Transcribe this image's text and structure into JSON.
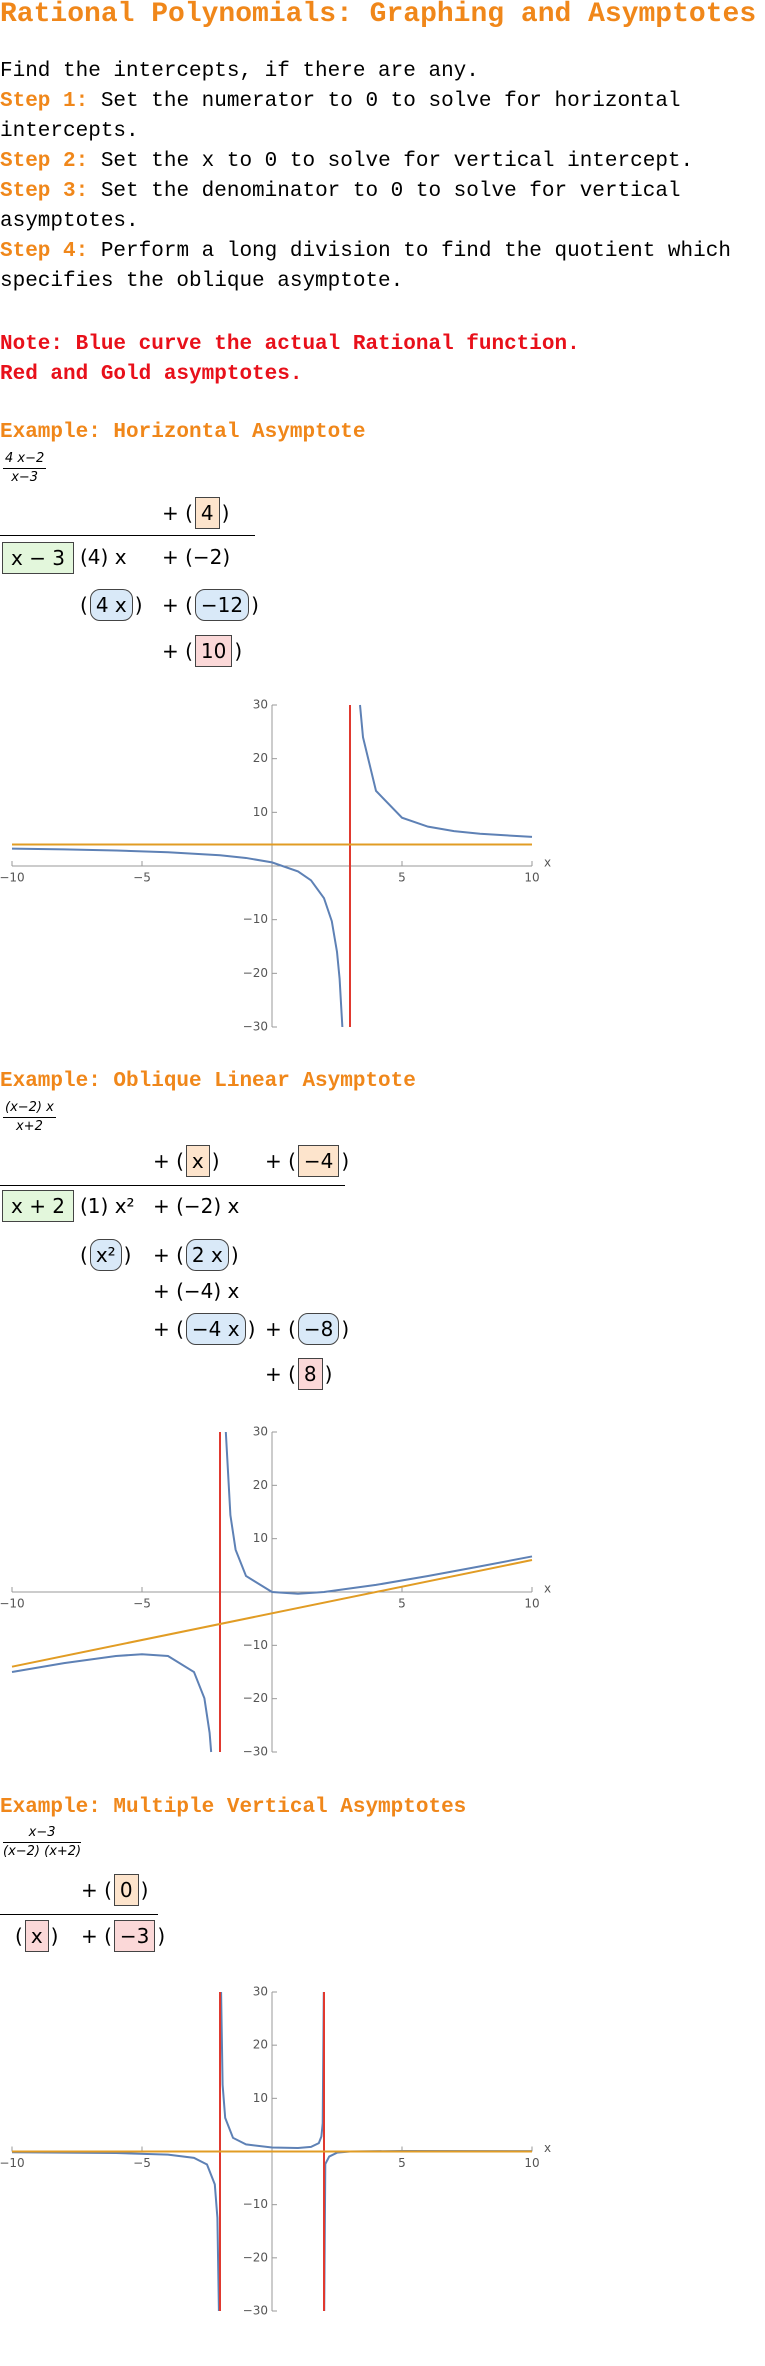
{
  "title": "Rational Polynomials: Graphing and Asymptotes",
  "intro": "Find the intercepts, if there are any.",
  "steps": [
    {
      "label": "Step 1:",
      "text": "Set the numerator to 0 to solve for horizontal intercepts."
    },
    {
      "label": "Step 2:",
      "text": "Set the x to 0 to solve for vertical intercept."
    },
    {
      "label": "Step 3:",
      "text": "Set the denominator to 0 to solve for vertical asymptotes."
    },
    {
      "label": "Step 4:",
      "text": "Perform a long division to find the quotient which specifies the oblique asymptote."
    }
  ],
  "notes": [
    "Note: Blue curve the actual Rational function.",
    "Red and Gold asymptotes."
  ],
  "examples": [
    {
      "heading": "Example: Horizontal Asymptote",
      "numerator": "4 x−2",
      "denominator": "x−3",
      "division": [
        {
          "pre": "+ (",
          "box": "4",
          "post": ")",
          "kind": "quotient"
        },
        {
          "box": "x − 3",
          "kind": "divisor"
        },
        {
          "pre": "(4) x"
        },
        {
          "pre": "+ (−2)"
        },
        {
          "pre": "(",
          "box": "4 x",
          "post": ")",
          "kind": "product"
        },
        {
          "pre": "+ (",
          "box": "−12",
          "post": ")",
          "kind": "product"
        },
        {
          "pre": "+ (",
          "box": "10",
          "post": ")",
          "kind": "remainder"
        }
      ]
    },
    {
      "heading": "Example: Oblique Linear Asymptote",
      "numerator": "(x−2) x",
      "denominator": "x+2",
      "division": [
        {
          "pre": "+ (",
          "box": "x",
          "post": ")",
          "kind": "quotient"
        },
        {
          "pre": "+ (",
          "box": "−4",
          "post": ")",
          "kind": "quotient"
        },
        {
          "box": "x + 2",
          "kind": "divisor"
        },
        {
          "pre": "(1) x²"
        },
        {
          "pre": "+ (−2) x"
        },
        {
          "pre": "(",
          "box": "x²",
          "post": ")",
          "kind": "product"
        },
        {
          "pre": "+ (",
          "box": "2 x",
          "post": ")",
          "kind": "product"
        },
        {
          "pre": "+ (−4) x"
        },
        {
          "pre": "+ (",
          "box": "−4 x",
          "post": ")",
          "kind": "product"
        },
        {
          "pre": "+ (",
          "box": "−8",
          "post": ")",
          "kind": "product"
        },
        {
          "pre": "+ (",
          "box": "8",
          "post": ")",
          "kind": "remainder"
        }
      ]
    },
    {
      "heading": "Example: Multiple Vertical Asymptotes",
      "numerator": "x−3",
      "denominator": "(x−2) (x+2)",
      "division": [
        {
          "pre": "+ (",
          "box": "0",
          "post": ")",
          "kind": "quotient"
        },
        {
          "pre": "(",
          "box": "x",
          "post": ")",
          "kind": "remainder"
        },
        {
          "pre": "+ (",
          "box": "−3",
          "post": ")",
          "kind": "remainder"
        }
      ]
    }
  ],
  "chart_data": [
    {
      "type": "line",
      "x_label": "x",
      "xlim": [
        -10,
        10
      ],
      "ylim": [
        -30,
        30
      ],
      "xticks": [
        {
          "value": -10,
          "label": "−10"
        },
        {
          "value": -5,
          "label": "−5"
        },
        5,
        10
      ],
      "yticks": [
        {
          "value": -30,
          "label": "−30"
        },
        {
          "value": -20,
          "label": "−20"
        },
        {
          "value": -10,
          "label": "−10"
        },
        10,
        20,
        30
      ],
      "series": [
        {
          "color": "#5e81b5",
          "x": [
            -10,
            -8,
            -6,
            -4,
            -2,
            -1,
            0,
            1,
            1.5,
            2,
            2.3,
            2.5,
            2.6,
            2.706,
            null,
            3.385,
            3.5,
            4,
            5,
            6,
            7,
            8,
            10
          ],
          "values": [
            3.23,
            3.09,
            2.89,
            2.57,
            2,
            1.5,
            0.67,
            -1,
            -2.67,
            -6,
            -10.29,
            -16,
            -21,
            -30,
            null,
            30,
            24,
            14,
            9,
            7.33,
            6.5,
            6,
            5.43
          ]
        },
        {
          "color": "#e0392f",
          "x": [
            3,
            3
          ],
          "values": [
            -30,
            30
          ]
        },
        {
          "color": "#e19c24",
          "x": [
            -10,
            10
          ],
          "values": [
            4,
            4
          ]
        }
      ]
    },
    {
      "type": "line",
      "x_label": "x",
      "xlim": [
        -10,
        10
      ],
      "ylim": [
        -30,
        30
      ],
      "xticks": [
        {
          "value": -10,
          "label": "−10"
        },
        {
          "value": -5,
          "label": "−5"
        },
        5,
        10
      ],
      "yticks": [
        {
          "value": -30,
          "label": "−30"
        },
        {
          "value": -20,
          "label": "−20"
        },
        {
          "value": -10,
          "label": "−10"
        },
        10,
        20,
        30
      ],
      "series": [
        {
          "color": "#5e81b5",
          "x": [
            -10,
            -8,
            -6,
            -5,
            -4,
            -3,
            -2.6,
            -2.4,
            -2.34,
            null,
            -1.776,
            -1.6,
            -1.4,
            -1,
            0,
            1,
            2,
            4,
            6,
            8,
            10
          ],
          "values": [
            -15,
            -13.33,
            -12,
            -11.67,
            -12,
            -15,
            -19.93,
            -26.4,
            -30,
            null,
            30,
            14.4,
            7.93,
            3,
            0,
            -0.33,
            0,
            1.33,
            3,
            4.8,
            6.67
          ]
        },
        {
          "color": "#e0392f",
          "x": [
            -2,
            -2
          ],
          "values": [
            -30,
            30
          ]
        },
        {
          "color": "#e19c24",
          "x": [
            -10,
            10
          ],
          "values": [
            -14,
            6
          ]
        }
      ]
    },
    {
      "type": "line",
      "x_label": "x",
      "xlim": [
        -10,
        10
      ],
      "ylim": [
        -30,
        30
      ],
      "xticks": [
        {
          "value": -10,
          "label": "−10"
        },
        {
          "value": -5,
          "label": "−5"
        },
        5,
        10
      ],
      "yticks": [
        {
          "value": -30,
          "label": "−30"
        },
        {
          "value": -20,
          "label": "−20"
        },
        {
          "value": -10,
          "label": "−10"
        },
        10,
        20,
        30
      ],
      "series": [
        {
          "color": "#5e81b5",
          "x": [
            -10,
            -6,
            -4,
            -3,
            -2.5,
            -2.2,
            -2.1,
            -2.042,
            null,
            -1.958,
            -1.9,
            -1.8,
            -1.5,
            -1,
            0,
            1,
            1.5,
            1.8,
            1.9,
            1.95,
            1.992,
            null,
            2.008,
            2.05,
            2.2,
            2.5,
            3,
            5,
            10
          ],
          "values": [
            -0.135,
            -0.28,
            -0.58,
            -1.2,
            -2.44,
            -6.19,
            -12.44,
            -30,
            null,
            30,
            12.56,
            6.32,
            2.57,
            1.33,
            0.75,
            0.67,
            0.86,
            1.58,
            2.82,
            5.32,
            30,
            null,
            -30,
            -2.36,
            -0.95,
            -0.22,
            0,
            0.095,
            0.073
          ]
        },
        {
          "color": "#e0392f",
          "x": [
            -2,
            -2
          ],
          "values": [
            -30,
            30
          ]
        },
        {
          "color": "#e0392f",
          "x": [
            2,
            2
          ],
          "values": [
            -30,
            30
          ]
        },
        {
          "color": "#e19c24",
          "x": [
            -10,
            10
          ],
          "values": [
            0,
            0
          ]
        }
      ]
    }
  ]
}
